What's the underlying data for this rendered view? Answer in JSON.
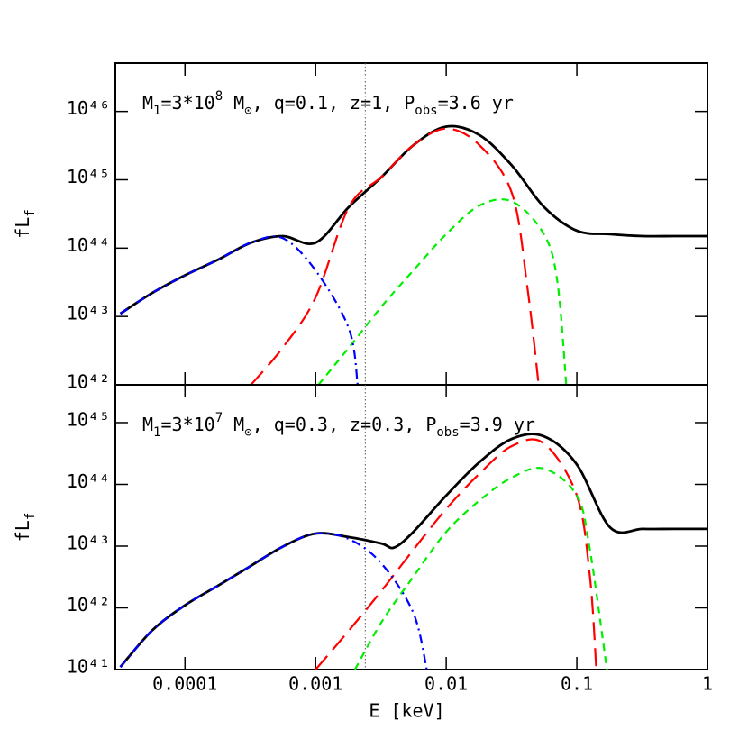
{
  "chart_data": [
    {
      "type": "line",
      "log_x": true,
      "log_y": true,
      "annotation": [
        "M",
        "1",
        "=3*10",
        "8",
        " M",
        "⊙",
        ", q=0.1, z=1, P",
        "obs",
        "=3.6 yr"
      ],
      "ylabel": [
        "fL",
        "f"
      ],
      "xlim": [
        2.93e-05,
        1
      ],
      "xticks": [
        0.0001,
        0.001,
        0.01,
        0.1,
        1
      ],
      "ylim": [
        1e+42,
        5.1e+46
      ],
      "yticks": [
        {
          "value": 1e+42,
          "label": "10⁴²"
        },
        {
          "value": 1e+43,
          "label": "10⁴³"
        },
        {
          "value": 1e+44,
          "label": "10⁴⁴"
        },
        {
          "value": 1e+45,
          "label": "10⁴⁵"
        },
        {
          "value": 1e+46,
          "label": "10⁴⁶"
        }
      ],
      "vline": 0.0024,
      "series": [
        {
          "color": "#000000",
          "style": "solid",
          "x": [
            3.2e-05,
            5.6e-05,
            0.0001,
            0.00018,
            0.00032,
            0.00056,
            0.001,
            0.0018,
            0.0032,
            0.0056,
            0.01,
            0.018,
            0.032,
            0.056,
            0.1,
            0.18,
            0.32,
            0.56,
            1
          ],
          "values": [
            1.1e+43,
            2.2e+43,
            4e+43,
            6.8e+43,
            1.2e+44,
            1.5e+44,
            1.2e+44,
            4e+44,
            1.1e+45,
            3.2e+45,
            6e+45,
            4.5e+45,
            1.6e+45,
            4e+44,
            1.8e+44,
            1.6e+44,
            1.5e+44,
            1.5e+44,
            1.5e+44
          ]
        },
        {
          "color": "#ff0000",
          "style": "long-dash",
          "x": [
            0.00032,
            0.00056,
            0.001,
            0.0018,
            0.0032,
            0.0056,
            0.01,
            0.018,
            0.032,
            0.042,
            0.051
          ],
          "values": [
            1e+42,
            3.5e+42,
            1.9e+43,
            4e+44,
            1.1e+45,
            3.2e+45,
            5.6e+45,
            3.2e+45,
            6.2e+44,
            2.5e+43,
            1e+42
          ]
        },
        {
          "color": "#00ee00",
          "style": "dash",
          "x": [
            0.00105,
            0.0018,
            0.0032,
            0.0056,
            0.01,
            0.018,
            0.032,
            0.056,
            0.071,
            0.083
          ],
          "values": [
            1e+42,
            3.5e+42,
            1.4e+43,
            4.7e+43,
            1.6e+44,
            4.2e+44,
            4.8e+44,
            1.6e+44,
            3.2e+43,
            1e+42
          ]
        },
        {
          "color": "#0000ff",
          "style": "dash-dot",
          "x": [
            3.2e-05,
            5.6e-05,
            0.0001,
            0.00018,
            0.00032,
            0.00056,
            0.001,
            0.0018,
            0.0021
          ],
          "values": [
            1.1e+43,
            2.2e+43,
            4e+43,
            6.8e+43,
            1.2e+44,
            1.4e+44,
            4.7e+43,
            6.6e+42,
            1e+42
          ]
        }
      ]
    },
    {
      "type": "line",
      "log_x": true,
      "log_y": true,
      "annotation": [
        "M",
        "1",
        "=3*10",
        "7",
        " M",
        "⊙",
        ", q=0.3, z=0.3, P",
        "obs",
        "=3.9 yr"
      ],
      "ylabel": [
        "fL",
        "f"
      ],
      "xlabel": "E [keV]",
      "xlim": [
        2.93e-05,
        1
      ],
      "xticks": [
        0.0001,
        0.001,
        0.01,
        0.1,
        1
      ],
      "ylim": [
        1e+41,
        4.1e+45
      ],
      "yticks": [
        {
          "value": 1e+41,
          "label": "10⁴¹"
        },
        {
          "value": 1e+42,
          "label": "10⁴²"
        },
        {
          "value": 1e+43,
          "label": "10⁴³"
        },
        {
          "value": 1e+44,
          "label": "10⁴⁴"
        },
        {
          "value": 1e+45,
          "label": "10⁴⁵"
        }
      ],
      "vline": 0.0024,
      "series": [
        {
          "color": "#000000",
          "style": "solid",
          "x": [
            3.2e-05,
            5.6e-05,
            0.0001,
            0.00018,
            0.00032,
            0.00056,
            0.001,
            0.0018,
            0.0032,
            0.004,
            0.0056,
            0.01,
            0.018,
            0.032,
            0.056,
            0.1,
            0.18,
            0.32,
            0.56,
            1
          ],
          "values": [
            1.1e+41,
            4.3e+41,
            1.1e+42,
            2.3e+42,
            4.8e+42,
            9.8e+42,
            1.6e+43,
            1.4e+43,
            1.1e+43,
            9.5e+42,
            1.7e+43,
            6.6e+43,
            2.3e+44,
            5.5e+44,
            6e+44,
            2.1e+44,
            2e+43,
            1.9e+43,
            1.9e+43,
            1.9e+43
          ]
        },
        {
          "color": "#ff0000",
          "style": "long-dash",
          "x": [
            0.001,
            0.0018,
            0.0032,
            0.0056,
            0.01,
            0.018,
            0.032,
            0.056,
            0.1,
            0.126,
            0.141
          ],
          "values": [
            1e+41,
            4.3e+41,
            1.9e+42,
            8.7e+42,
            4e+43,
            1.5e+44,
            4.2e+44,
            4.6e+44,
            6.6e+43,
            3.2e+42,
            1e+41
          ]
        },
        {
          "color": "#00ee00",
          "style": "dash",
          "x": [
            0.002,
            0.0032,
            0.0056,
            0.01,
            0.018,
            0.032,
            0.056,
            0.1,
            0.126,
            0.17
          ],
          "values": [
            1e+41,
            5.9e+41,
            3.2e+42,
            1.7e+43,
            5.5e+43,
            1.3e+44,
            1.8e+44,
            6.6e+43,
            8.7e+42,
            1e+41
          ]
        },
        {
          "color": "#0000ff",
          "style": "dash-dot",
          "x": [
            3.2e-05,
            5.6e-05,
            0.0001,
            0.00018,
            0.00032,
            0.00056,
            0.001,
            0.0018,
            0.0032,
            0.0056,
            0.0071
          ],
          "values": [
            1.1e+41,
            4.3e+41,
            1.1e+42,
            2.3e+42,
            4.8e+42,
            9.8e+42,
            1.6e+43,
            1.3e+43,
            5.2e+42,
            8.3e+41,
            1e+41
          ]
        }
      ]
    }
  ]
}
